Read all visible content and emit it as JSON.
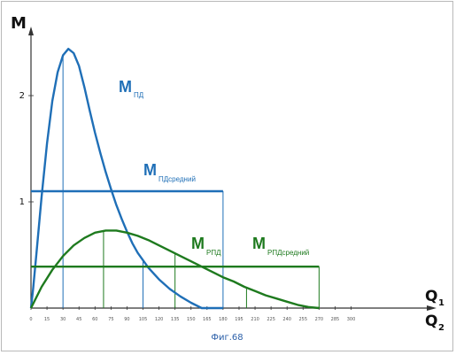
{
  "caption": "Фиг.68",
  "colors": {
    "blue": "#1f6fb7",
    "green": "#1e7a1e",
    "axis": "#333333"
  },
  "chart_data": {
    "type": "line",
    "title": "",
    "xlabel_1": "Q",
    "xlabel_1_sub": "1",
    "xlabel_2": "Q",
    "xlabel_2_sub": "2",
    "ylabel": "M",
    "xlim": [
      0,
      300
    ],
    "ylim": [
      0,
      2.6
    ],
    "x_ticks": [
      0,
      15,
      30,
      45,
      60,
      75,
      90,
      105,
      120,
      135,
      150,
      165,
      180,
      195,
      210,
      225,
      240,
      255,
      270,
      285,
      300
    ],
    "x_tick_labels": [
      "0",
      "15",
      "30",
      "45",
      "60",
      "75",
      "90",
      "105",
      "120",
      "135",
      "150",
      "165",
      "180",
      "195",
      "210",
      "225",
      "240",
      "255",
      "270",
      "285",
      "300"
    ],
    "y_ticks": [
      1,
      2
    ],
    "y_tick_labels": [
      "1",
      "2"
    ],
    "grid": false,
    "legend": "none",
    "series": [
      {
        "label_main": "M",
        "label_sub": "ПД",
        "color_key": "blue",
        "x": [
          0,
          2,
          5,
          10,
          15,
          20,
          25,
          30,
          35,
          40,
          45,
          50,
          55,
          60,
          65,
          70,
          75,
          80,
          85,
          90,
          95,
          100,
          110,
          120,
          130,
          140,
          150,
          160,
          170,
          180
        ],
        "y": [
          0,
          0.18,
          0.5,
          1.05,
          1.55,
          1.95,
          2.22,
          2.38,
          2.44,
          2.4,
          2.28,
          2.08,
          1.86,
          1.65,
          1.46,
          1.28,
          1.12,
          0.97,
          0.84,
          0.72,
          0.61,
          0.52,
          0.38,
          0.27,
          0.18,
          0.11,
          0.05,
          0.0,
          0.0,
          0.0
        ]
      },
      {
        "label_main": "M",
        "label_sub": "ПДсредний",
        "color_key": "blue",
        "x": [
          0,
          180
        ],
        "y": [
          1.1,
          1.1
        ]
      },
      {
        "label_main": "M",
        "label_sub": "РПД",
        "color_key": "green",
        "x": [
          0,
          10,
          20,
          30,
          40,
          50,
          60,
          70,
          80,
          90,
          100,
          110,
          120,
          130,
          140,
          150,
          160,
          170,
          180,
          190,
          200,
          210,
          220,
          230,
          240,
          250,
          260,
          270
        ],
        "y": [
          0,
          0.2,
          0.36,
          0.49,
          0.59,
          0.66,
          0.71,
          0.73,
          0.73,
          0.71,
          0.68,
          0.64,
          0.59,
          0.54,
          0.49,
          0.44,
          0.39,
          0.34,
          0.29,
          0.25,
          0.2,
          0.16,
          0.12,
          0.09,
          0.06,
          0.03,
          0.01,
          0
        ]
      },
      {
        "label_main": "M",
        "label_sub": "РПДсредний",
        "color_key": "green",
        "x": [
          0,
          270
        ],
        "y": [
          0.39,
          0.39
        ]
      }
    ],
    "blue_verticals_x": [
      30,
      105,
      180
    ],
    "green_verticals_x": [
      68,
      135,
      202,
      270
    ]
  }
}
